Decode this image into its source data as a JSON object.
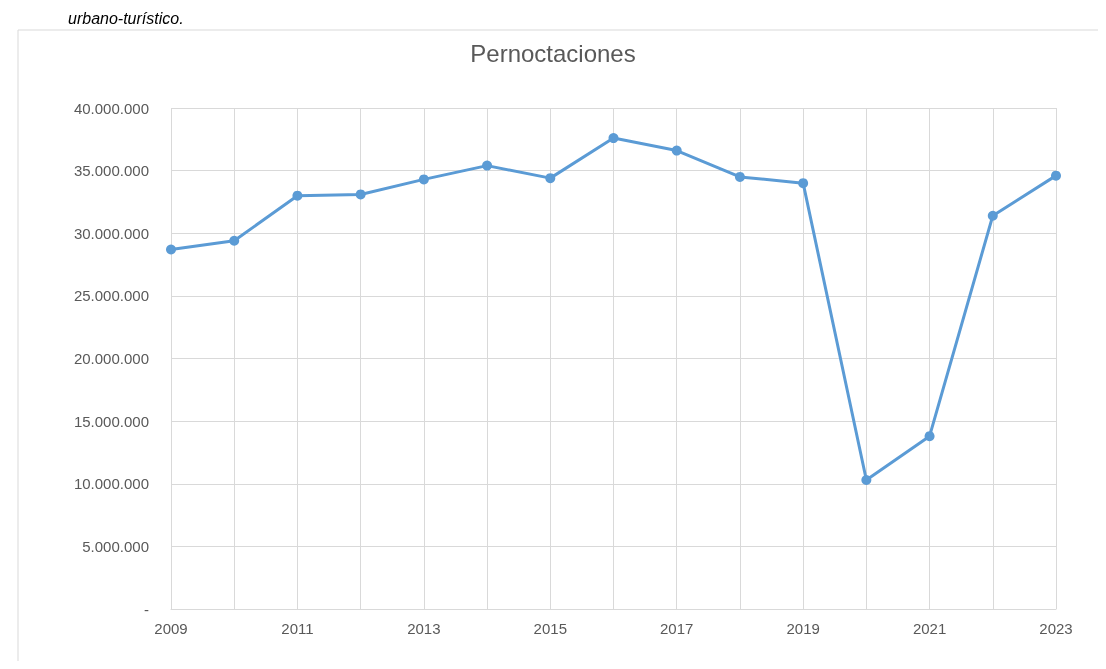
{
  "chart_data": {
    "type": "line",
    "title": "Pernoctaciones",
    "annotations": [
      "urbano-turístico."
    ],
    "x": [
      2009,
      2010,
      2011,
      2012,
      2013,
      2014,
      2015,
      2016,
      2017,
      2018,
      2019,
      2020,
      2021,
      2022,
      2023
    ],
    "series": [
      {
        "color": "#5b9bd5",
        "values": [
          28700000,
          29400000,
          33000000,
          33100000,
          34300000,
          35400000,
          34400000,
          37600000,
          36600000,
          34500000,
          34000000,
          10300000,
          13800000,
          31400000,
          34600000
        ]
      }
    ],
    "xlim": [
      2009,
      2023
    ],
    "xticks": [
      2009,
      {
        "value": 2010,
        "label": null
      },
      2011,
      {
        "value": 2012,
        "label": null
      },
      2013,
      {
        "value": 2014,
        "label": null
      },
      2015,
      {
        "value": 2016,
        "label": null
      },
      2017,
      {
        "value": 2018,
        "label": null
      },
      2019,
      {
        "value": 2020,
        "label": null
      },
      2021,
      {
        "value": 2022,
        "label": null
      },
      2023
    ],
    "ylim": [
      0,
      40000000
    ],
    "yticks": [
      {
        "value": 0,
        "label": "-"
      },
      {
        "value": 5000000,
        "label": "5.000.000"
      },
      {
        "value": 10000000,
        "label": "10.000.000"
      },
      {
        "value": 15000000,
        "label": "15.000.000"
      },
      {
        "value": 20000000,
        "label": "20.000.000"
      },
      {
        "value": 25000000,
        "label": "25.000.000"
      },
      {
        "value": 30000000,
        "label": "30.000.000"
      },
      {
        "value": 35000000,
        "label": "35.000.000"
      },
      {
        "value": 40000000,
        "label": "40.000.000"
      }
    ],
    "grid": true,
    "marker": "circle",
    "line_style": "solid"
  }
}
